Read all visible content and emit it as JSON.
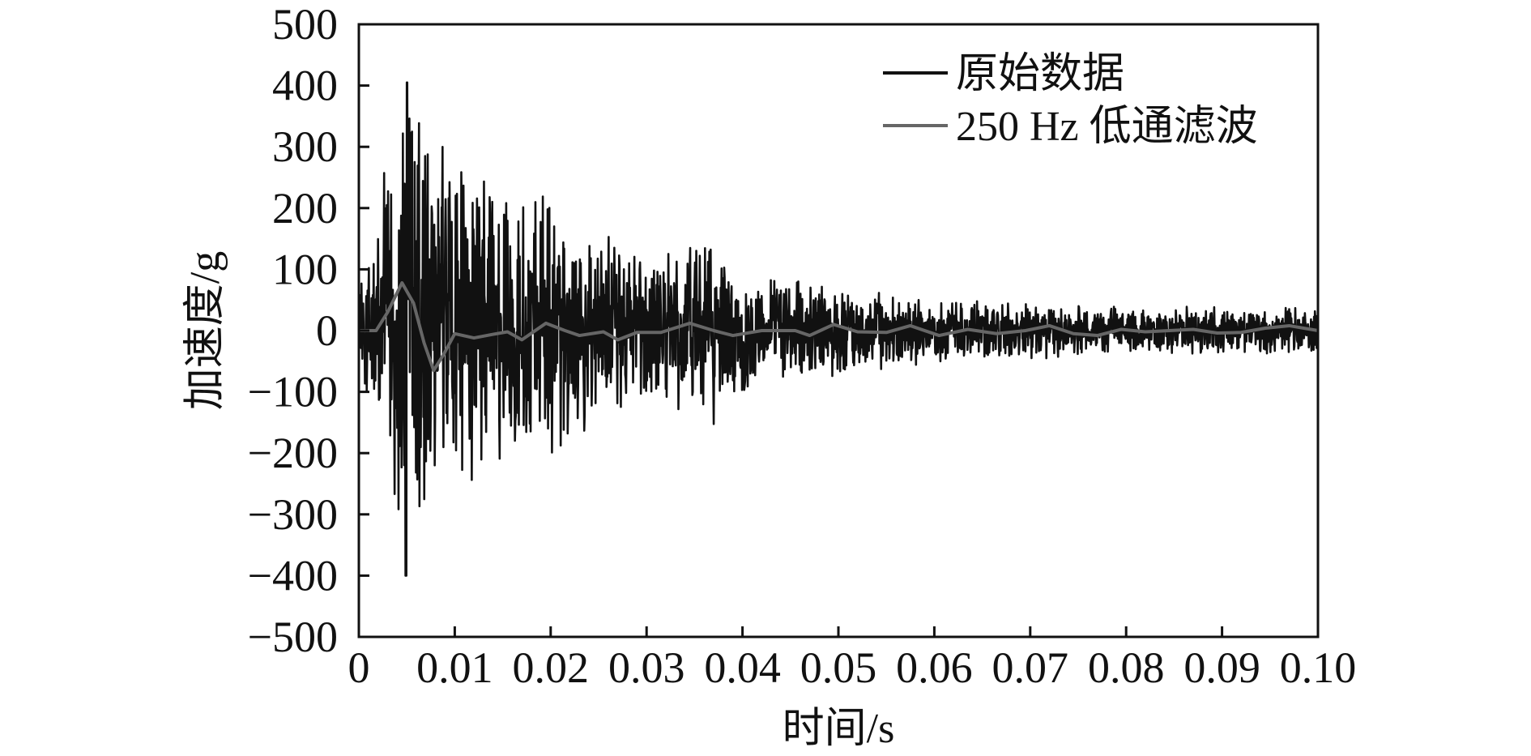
{
  "chart_data": {
    "type": "line",
    "title": "",
    "xlabel": "时间/s",
    "ylabel": "加速度/g",
    "xlim": [
      0,
      0.1
    ],
    "ylim": [
      -500,
      500
    ],
    "x_ticks": [
      0,
      0.01,
      0.02,
      0.03,
      0.04,
      0.05,
      0.06,
      0.07,
      0.08,
      0.09,
      0.1
    ],
    "x_tick_labels": [
      "0",
      "0.01",
      "0.02",
      "0.03",
      "0.04",
      "0.05",
      "0.06",
      "0.07",
      "0.08",
      "0.09",
      "0.10"
    ],
    "y_ticks": [
      -500,
      -400,
      -300,
      -200,
      -100,
      0,
      100,
      200,
      300,
      400,
      500
    ],
    "y_tick_labels": [
      "−500",
      "−400",
      "−300",
      "−200",
      "−100",
      "0",
      "100",
      "200",
      "300",
      "400",
      "500"
    ],
    "grid": false,
    "legend_position": "top-right",
    "series": [
      {
        "name": "原始数据",
        "color": "#111111",
        "style": "noisy-decay",
        "peak_max": 405,
        "peak_min": -400,
        "envelope": [
          [
            0,
            60
          ],
          [
            0.002,
            190
          ],
          [
            0.004,
            330
          ],
          [
            0.005,
            400
          ],
          [
            0.008,
            330
          ],
          [
            0.01,
            290
          ],
          [
            0.015,
            240
          ],
          [
            0.02,
            200
          ],
          [
            0.025,
            150
          ],
          [
            0.03,
            120
          ],
          [
            0.036,
            160
          ],
          [
            0.04,
            100
          ],
          [
            0.045,
            80
          ],
          [
            0.05,
            70
          ],
          [
            0.06,
            50
          ],
          [
            0.07,
            45
          ],
          [
            0.08,
            40
          ],
          [
            0.09,
            38
          ],
          [
            0.1,
            40
          ]
        ]
      },
      {
        "name": "250 Hz 低通滤波",
        "color": "#666666",
        "points": [
          [
            0,
            0
          ],
          [
            0.0018,
            0
          ],
          [
            0.003,
            30
          ],
          [
            0.0045,
            78
          ],
          [
            0.0057,
            45
          ],
          [
            0.0068,
            -20
          ],
          [
            0.0078,
            -65
          ],
          [
            0.0088,
            -40
          ],
          [
            0.01,
            -5
          ],
          [
            0.012,
            -12
          ],
          [
            0.014,
            -6
          ],
          [
            0.0155,
            -2
          ],
          [
            0.017,
            -15
          ],
          [
            0.0195,
            12
          ],
          [
            0.0215,
            0
          ],
          [
            0.023,
            -8
          ],
          [
            0.0255,
            -2
          ],
          [
            0.027,
            -15
          ],
          [
            0.029,
            -3
          ],
          [
            0.0315,
            -3
          ],
          [
            0.0345,
            12
          ],
          [
            0.037,
            0
          ],
          [
            0.039,
            -8
          ],
          [
            0.042,
            0
          ],
          [
            0.0455,
            0
          ],
          [
            0.047,
            -8
          ],
          [
            0.0495,
            10
          ],
          [
            0.052,
            -2
          ],
          [
            0.055,
            -3
          ],
          [
            0.0575,
            8
          ],
          [
            0.0605,
            -8
          ],
          [
            0.0635,
            2
          ],
          [
            0.0665,
            -5
          ],
          [
            0.0695,
            0
          ],
          [
            0.072,
            8
          ],
          [
            0.0745,
            -5
          ],
          [
            0.077,
            -8
          ],
          [
            0.0795,
            2
          ],
          [
            0.082,
            -2
          ],
          [
            0.0845,
            0
          ],
          [
            0.087,
            2
          ],
          [
            0.0895,
            -4
          ],
          [
            0.092,
            -3
          ],
          [
            0.0945,
            4
          ],
          [
            0.097,
            8
          ],
          [
            0.1,
            0
          ]
        ]
      }
    ]
  }
}
